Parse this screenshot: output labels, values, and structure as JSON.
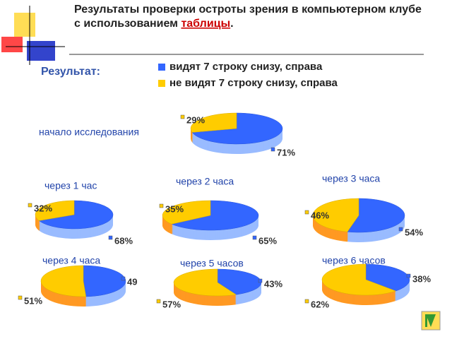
{
  "title": [
    "Результаты проверки остроты зрения в компьютерном клубе с использованием ",
    "таблицы",
    "."
  ],
  "result_label": "Результат:",
  "legend": [
    {
      "name": "видят 7 строку снизу, справа",
      "color": "#3366ff"
    },
    {
      "name": "не видят 7 строку снизу, справа",
      "color": "#ffcc00"
    }
  ],
  "chart_data": [
    {
      "type": "pie",
      "title": "начало исследования",
      "values": [
        71,
        29
      ],
      "value_labels": [
        "71%",
        "29%"
      ]
    },
    {
      "type": "pie",
      "title": "через 1 час",
      "values": [
        68,
        32
      ],
      "value_labels": [
        "68%",
        "32%"
      ]
    },
    {
      "type": "pie",
      "title": "через 2 часа",
      "values": [
        65,
        35
      ],
      "value_labels": [
        "65%",
        "35%"
      ]
    },
    {
      "type": "pie",
      "title": "через 3 часа",
      "values": [
        54,
        46
      ],
      "value_labels": [
        "54%",
        "46%"
      ]
    },
    {
      "type": "pie",
      "title": "через 4 часа",
      "values": [
        49,
        51
      ],
      "value_labels": [
        "49",
        "51%"
      ]
    },
    {
      "type": "pie",
      "title": "через 5 часов",
      "values": [
        43,
        57
      ],
      "value_labels": [
        "43%",
        "57%"
      ]
    },
    {
      "type": "pie",
      "title": "через 6 часов",
      "values": [
        38,
        62
      ],
      "value_labels": [
        "38%",
        "62%"
      ]
    }
  ]
}
